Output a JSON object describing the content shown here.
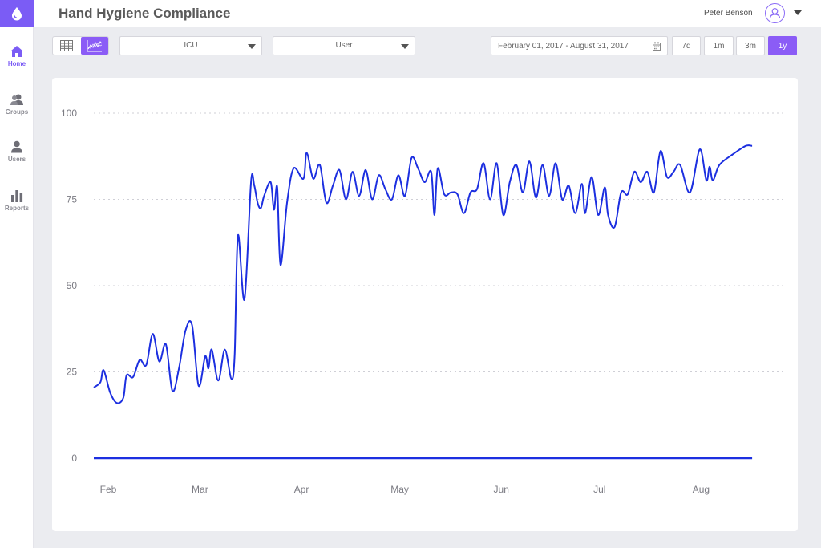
{
  "app": {
    "title": "Hand Hygiene Compliance",
    "accent": "#8b5cf6"
  },
  "user": {
    "name": "Peter Benson"
  },
  "sidebar": {
    "items": [
      {
        "label": "Home",
        "icon": "home-icon",
        "active": true
      },
      {
        "label": "Groups",
        "icon": "groups-icon"
      },
      {
        "label": "Users",
        "icon": "user-icon"
      },
      {
        "label": "Reports",
        "icon": "bar-chart-icon"
      }
    ]
  },
  "toolbar": {
    "view_modes": [
      "table",
      "chart"
    ],
    "active_view": "chart",
    "unit_select": "ICU",
    "user_select": "User",
    "date_range": "February 01, 2017 - August 31, 2017",
    "range_buttons": [
      "7d",
      "1m",
      "3m",
      "1y"
    ],
    "active_range": "1y"
  },
  "chart_data": {
    "type": "line",
    "title": "",
    "xlabel": "",
    "ylabel": "",
    "ylim": [
      0,
      100
    ],
    "yticks": [
      0,
      25,
      50,
      75,
      100
    ],
    "xticks": [
      "Feb",
      "Mar",
      "Apr",
      "May",
      "Jun",
      "Jul",
      "Aug"
    ],
    "grid": true,
    "line_color": "#1c2fe0",
    "x_range": [
      "2017-02-01",
      "2017-08-31"
    ],
    "series": [
      {
        "values": [
          [
            "2017-02-01",
            20.5
          ],
          [
            "2017-02-03",
            22
          ],
          [
            "2017-02-04",
            25.5
          ],
          [
            "2017-02-06",
            19
          ],
          [
            "2017-02-08",
            16
          ],
          [
            "2017-02-10",
            17.5
          ],
          [
            "2017-02-11",
            24
          ],
          [
            "2017-02-13",
            23.5
          ],
          [
            "2017-02-15",
            28.5
          ],
          [
            "2017-02-17",
            27
          ],
          [
            "2017-02-19",
            36
          ],
          [
            "2017-02-21",
            28
          ],
          [
            "2017-02-23",
            33
          ],
          [
            "2017-02-25",
            19.5
          ],
          [
            "2017-02-27",
            26
          ],
          [
            "2017-03-01",
            37
          ],
          [
            "2017-03-03",
            38.5
          ],
          [
            "2017-03-05",
            21
          ],
          [
            "2017-03-07",
            29.5
          ],
          [
            "2017-03-08",
            26
          ],
          [
            "2017-03-09",
            31.5
          ],
          [
            "2017-03-11",
            22.5
          ],
          [
            "2017-03-13",
            31.5
          ],
          [
            "2017-03-15",
            23
          ],
          [
            "2017-03-16",
            30
          ],
          [
            "2017-03-17",
            64.5
          ],
          [
            "2017-03-19",
            46
          ],
          [
            "2017-03-21",
            80
          ],
          [
            "2017-03-22",
            79
          ],
          [
            "2017-03-23",
            74
          ],
          [
            "2017-03-24",
            72.5
          ],
          [
            "2017-03-25",
            76
          ],
          [
            "2017-03-27",
            80
          ],
          [
            "2017-03-28",
            72
          ],
          [
            "2017-03-29",
            78.5
          ],
          [
            "2017-03-30",
            56
          ],
          [
            "2017-04-01",
            74
          ],
          [
            "2017-04-03",
            84
          ],
          [
            "2017-04-06",
            81
          ],
          [
            "2017-04-07",
            88.5
          ],
          [
            "2017-04-09",
            81
          ],
          [
            "2017-04-11",
            85
          ],
          [
            "2017-04-13",
            74
          ],
          [
            "2017-04-15",
            79
          ],
          [
            "2017-04-17",
            83.5
          ],
          [
            "2017-04-19",
            75
          ],
          [
            "2017-04-21",
            83
          ],
          [
            "2017-04-23",
            76
          ],
          [
            "2017-04-25",
            83.5
          ],
          [
            "2017-04-27",
            75
          ],
          [
            "2017-04-29",
            82
          ],
          [
            "2017-05-01",
            78
          ],
          [
            "2017-05-03",
            75
          ],
          [
            "2017-05-05",
            82
          ],
          [
            "2017-05-07",
            76
          ],
          [
            "2017-05-09",
            87
          ],
          [
            "2017-05-11",
            84
          ],
          [
            "2017-05-13",
            80
          ],
          [
            "2017-05-15",
            83
          ],
          [
            "2017-05-16",
            70.5
          ],
          [
            "2017-05-17",
            84
          ],
          [
            "2017-05-19",
            76.5
          ],
          [
            "2017-05-21",
            77
          ],
          [
            "2017-05-23",
            76.5
          ],
          [
            "2017-05-25",
            71
          ],
          [
            "2017-05-27",
            77
          ],
          [
            "2017-05-29",
            78
          ],
          [
            "2017-05-31",
            85.5
          ],
          [
            "2017-06-02",
            75
          ],
          [
            "2017-06-04",
            85.5
          ],
          [
            "2017-06-06",
            70.5
          ],
          [
            "2017-06-08",
            80
          ],
          [
            "2017-06-10",
            85
          ],
          [
            "2017-06-12",
            77
          ],
          [
            "2017-06-14",
            86
          ],
          [
            "2017-06-16",
            75.5
          ],
          [
            "2017-06-18",
            85
          ],
          [
            "2017-06-20",
            76
          ],
          [
            "2017-06-22",
            85.5
          ],
          [
            "2017-06-24",
            75
          ],
          [
            "2017-06-26",
            79
          ],
          [
            "2017-06-28",
            71
          ],
          [
            "2017-06-30",
            79.5
          ],
          [
            "2017-07-01",
            71
          ],
          [
            "2017-07-03",
            81.5
          ],
          [
            "2017-07-05",
            70.5
          ],
          [
            "2017-07-07",
            78.5
          ],
          [
            "2017-07-08",
            70.5
          ],
          [
            "2017-07-10",
            67
          ],
          [
            "2017-07-12",
            77
          ],
          [
            "2017-07-14",
            76.5
          ],
          [
            "2017-07-16",
            83
          ],
          [
            "2017-07-18",
            80
          ],
          [
            "2017-07-20",
            83
          ],
          [
            "2017-07-22",
            77
          ],
          [
            "2017-07-24",
            89
          ],
          [
            "2017-07-26",
            81.5
          ],
          [
            "2017-07-28",
            83
          ],
          [
            "2017-07-30",
            85
          ],
          [
            "2017-08-02",
            77
          ],
          [
            "2017-08-05",
            89.5
          ],
          [
            "2017-08-07",
            80.5
          ],
          [
            "2017-08-08",
            84.5
          ],
          [
            "2017-08-09",
            80.5
          ],
          [
            "2017-08-11",
            85
          ],
          [
            "2017-08-15",
            88
          ],
          [
            "2017-08-19",
            90.5
          ],
          [
            "2017-08-21",
            90.5
          ]
        ]
      },
      {
        "values": [
          [
            "2017-02-01",
            0
          ],
          [
            "2017-08-21",
            0
          ]
        ]
      }
    ]
  }
}
